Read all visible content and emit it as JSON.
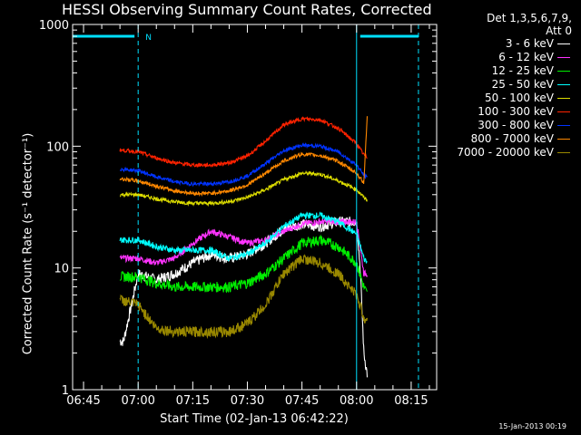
{
  "chart_data": {
    "type": "line",
    "title": "HESSI Observing Summary Count Rates, Corrected",
    "xlabel": "Start Time (02-Jan-13 06:42:22)",
    "ylabel": "Corrected Count Rate (s⁻¹ detector⁻¹)",
    "x_unit": "minutes",
    "x_range": [
      "06:42",
      "08:22"
    ],
    "x_ticks": [
      "06:45",
      "07:00",
      "07:15",
      "07:30",
      "07:45",
      "08:00",
      "08:15"
    ],
    "y_scale": "log",
    "ylim": [
      1,
      1000
    ],
    "y_ticks": [
      "1",
      "10",
      "100",
      "1000"
    ],
    "legend_header": [
      "Det 1,3,5,6,7,9,",
      "Att 0"
    ],
    "legend_position": "right",
    "annotations": [
      {
        "type": "bar",
        "label": "",
        "start": "06:42",
        "end": "06:59",
        "color": "#00e0ff",
        "value": 800
      },
      {
        "type": "bar",
        "label": "",
        "start": "08:01",
        "end": "08:17",
        "color": "#00e0ff",
        "value": 800
      },
      {
        "type": "text",
        "label": "N",
        "x": "07:01",
        "value": 800,
        "color": "#00e0ff"
      }
    ],
    "vlines": [
      {
        "x": "06:42",
        "style": "solid",
        "color": "#00e0ff"
      },
      {
        "x": "07:00",
        "style": "dashed",
        "color": "#00e0ff"
      },
      {
        "x": "08:00",
        "style": "solid",
        "color": "#00e0ff"
      },
      {
        "x": "08:17",
        "style": "dashed",
        "color": "#00e0ff"
      }
    ],
    "series": [
      {
        "name": "3 - 6 keV",
        "color": "#ffffff",
        "x": [
          "06:55",
          "06:56",
          "07:00",
          "07:05",
          "07:10",
          "07:15",
          "07:20",
          "07:25",
          "07:30",
          "07:35",
          "07:40",
          "07:45",
          "07:50",
          "07:55",
          "08:00",
          "08:01",
          "08:02",
          "08:03"
        ],
        "y": [
          2.5,
          2.5,
          9,
          8,
          9,
          11,
          13,
          12,
          13,
          16,
          21,
          23,
          22,
          24,
          24,
          10,
          2,
          1.3
        ]
      },
      {
        "name": "6 - 12 keV",
        "color": "#ff33ff",
        "x": [
          "06:55",
          "07:00",
          "07:05",
          "07:10",
          "07:15",
          "07:20",
          "07:25",
          "07:30",
          "07:35",
          "07:40",
          "07:45",
          "07:50",
          "07:55",
          "08:00",
          "08:02",
          "08:03"
        ],
        "y": [
          12,
          12,
          11,
          12,
          16,
          20,
          18,
          16,
          17,
          20,
          23,
          24,
          24,
          24,
          9,
          9
        ]
      },
      {
        "name": "12 - 25 keV",
        "color": "#00ee00",
        "x": [
          "06:55",
          "07:00",
          "07:05",
          "07:10",
          "07:15",
          "07:20",
          "07:25",
          "07:30",
          "07:35",
          "07:40",
          "07:45",
          "07:50",
          "07:55",
          "08:00",
          "08:02",
          "08:03"
        ],
        "y": [
          8.5,
          8.5,
          7.5,
          7,
          7,
          7,
          7,
          7.5,
          9,
          12,
          16,
          17,
          15,
          11,
          7,
          6
        ]
      },
      {
        "name": "25 - 50 keV",
        "color": "#00ffff",
        "x": [
          "06:55",
          "07:00",
          "07:05",
          "07:10",
          "07:15",
          "07:20",
          "07:25",
          "07:30",
          "07:35",
          "07:40",
          "07:45",
          "07:50",
          "07:55",
          "08:00",
          "08:02",
          "08:03"
        ],
        "y": [
          17,
          17,
          15,
          14,
          14,
          14,
          12,
          13,
          16,
          22,
          27,
          27,
          24,
          19,
          12,
          11
        ]
      },
      {
        "name": "50 - 100 keV",
        "color": "#dddd00",
        "x": [
          "06:55",
          "07:00",
          "07:05",
          "07:10",
          "07:15",
          "07:20",
          "07:25",
          "07:30",
          "07:35",
          "07:40",
          "07:45",
          "07:50",
          "07:55",
          "08:00",
          "08:02",
          "08:03"
        ],
        "y": [
          40,
          40,
          37,
          35,
          34,
          34,
          35,
          38,
          44,
          53,
          60,
          59,
          52,
          44,
          38,
          36
        ]
      },
      {
        "name": "100 - 300 keV",
        "color": "#ff2200",
        "x": [
          "06:55",
          "07:00",
          "07:05",
          "07:10",
          "07:15",
          "07:20",
          "07:25",
          "07:30",
          "07:35",
          "07:40",
          "07:45",
          "07:50",
          "07:55",
          "08:00",
          "08:02",
          "08:03"
        ],
        "y": [
          93,
          90,
          80,
          73,
          70,
          70,
          73,
          83,
          110,
          150,
          168,
          165,
          140,
          105,
          85,
          80
        ]
      },
      {
        "name": "300 - 800 keV",
        "color": "#0033ff",
        "x": [
          "06:55",
          "07:00",
          "07:05",
          "07:10",
          "07:15",
          "07:20",
          "07:25",
          "07:30",
          "07:35",
          "07:40",
          "07:45",
          "07:50",
          "07:55",
          "08:00",
          "08:02",
          "08:03"
        ],
        "y": [
          65,
          63,
          56,
          51,
          49,
          49,
          51,
          57,
          72,
          92,
          102,
          100,
          90,
          70,
          58,
          55
        ]
      },
      {
        "name": "800 - 7000 keV",
        "color": "#ff8800",
        "x": [
          "06:55",
          "07:00",
          "07:05",
          "07:10",
          "07:15",
          "07:20",
          "07:25",
          "07:30",
          "07:35",
          "07:40",
          "07:45",
          "07:50",
          "07:55",
          "08:00",
          "08:02",
          "08:03"
        ],
        "y": [
          54,
          52,
          47,
          43,
          41,
          41,
          43,
          48,
          60,
          76,
          86,
          84,
          75,
          60,
          50,
          200
        ]
      },
      {
        "name": "7000 - 20000 keV",
        "color": "#998800",
        "x": [
          "06:55",
          "07:00",
          "07:05",
          "07:10",
          "07:15",
          "07:20",
          "07:25",
          "07:30",
          "07:35",
          "07:40",
          "07:45",
          "07:50",
          "07:55",
          "08:00",
          "08:02",
          "08:03"
        ],
        "y": [
          5.5,
          5,
          3.2,
          3,
          3,
          3,
          3,
          3.5,
          5,
          9,
          12,
          11,
          9,
          6,
          4,
          3.5
        ]
      }
    ]
  },
  "footer": {
    "timestamp": "15-Jan-2013 00:19"
  }
}
